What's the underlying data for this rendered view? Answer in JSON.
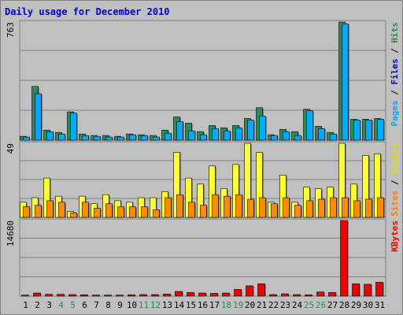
{
  "title": "Daily usage for December 2010",
  "panels": {
    "top": {
      "ymax_label": "763",
      "legend": [
        {
          "text": "Pages",
          "color": "#00aaff"
        },
        {
          "text": " / ",
          "color": "#000000"
        },
        {
          "text": "Files",
          "color": "#0000cc"
        },
        {
          "text": " / ",
          "color": "#000000"
        },
        {
          "text": "Hits",
          "color": "#2e8b57"
        }
      ]
    },
    "middle": {
      "ymax_label": "49",
      "legend": [
        {
          "text": "Sites",
          "color": "#ff8000"
        },
        {
          "text": " / ",
          "color": "#000000"
        },
        {
          "text": "Visits",
          "color": "#e0e000"
        }
      ]
    },
    "bottom": {
      "ymax_label": "14680",
      "legend": [
        {
          "text": "KBytes",
          "color": "#ee0000"
        }
      ]
    }
  },
  "colors": {
    "hits": "#2e8b57",
    "files": "#00aaff",
    "visits": "#ffff33",
    "sites": "#ff8c00",
    "kbytes": "#ee0000",
    "weekend_label": "#2e8b57",
    "weekday_label": "#000000"
  },
  "chart_data": {
    "type": "bar",
    "categories": [
      "1",
      "2",
      "3",
      "4",
      "5",
      "6",
      "7",
      "8",
      "9",
      "10",
      "11",
      "12",
      "13",
      "14",
      "15",
      "16",
      "17",
      "18",
      "19",
      "20",
      "21",
      "22",
      "23",
      "24",
      "25",
      "26",
      "27",
      "28",
      "29",
      "30",
      "31"
    ],
    "weekend_days": [
      "4",
      "5",
      "11",
      "12",
      "18",
      "19",
      "25",
      "26"
    ],
    "series": [
      {
        "name": "Hits",
        "panel": "top",
        "ylim": [
          0,
          763
        ],
        "values": [
          25,
          347,
          65,
          50,
          183,
          40,
          30,
          30,
          25,
          40,
          35,
          30,
          65,
          150,
          110,
          55,
          95,
          80,
          95,
          140,
          210,
          35,
          70,
          55,
          200,
          90,
          50,
          763,
          135,
          135,
          140
        ]
      },
      {
        "name": "Files",
        "panel": "top",
        "ylim": [
          0,
          763
        ],
        "values": [
          20,
          300,
          55,
          40,
          175,
          30,
          25,
          20,
          20,
          35,
          30,
          20,
          45,
          120,
          60,
          35,
          75,
          60,
          80,
          130,
          155,
          30,
          55,
          30,
          190,
          75,
          40,
          752,
          130,
          130,
          135
        ]
      },
      {
        "name": "Visits",
        "panel": "middle",
        "ylim": [
          0,
          49
        ],
        "values": [
          10,
          13,
          26,
          14,
          4,
          14,
          9,
          15,
          11,
          10,
          13,
          13,
          17,
          43,
          26,
          22,
          34,
          19,
          35,
          49,
          43,
          10,
          28,
          10,
          20,
          19,
          20,
          49,
          22,
          41,
          42
        ]
      },
      {
        "name": "Sites",
        "panel": "middle",
        "ylim": [
          0,
          49
        ],
        "values": [
          7,
          8,
          11,
          10,
          3,
          10,
          6,
          9,
          7,
          7,
          7,
          5,
          13,
          15,
          10,
          8,
          15,
          14,
          15,
          12,
          13,
          9,
          13,
          8,
          11,
          12,
          13,
          13,
          11,
          12,
          13
        ]
      },
      {
        "name": "KBytes",
        "panel": "bottom",
        "ylim": [
          0,
          14680
        ],
        "values": [
          200,
          600,
          350,
          350,
          300,
          250,
          200,
          200,
          200,
          250,
          300,
          300,
          400,
          900,
          700,
          600,
          550,
          600,
          1300,
          2000,
          2400,
          300,
          450,
          300,
          250,
          800,
          700,
          14680,
          2400,
          2300,
          2700
        ]
      }
    ]
  }
}
